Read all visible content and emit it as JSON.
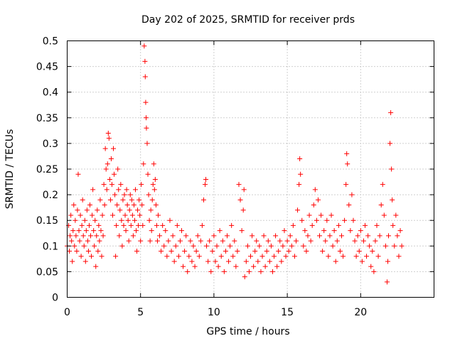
{
  "chart_data": {
    "type": "scatter",
    "title": "Day 202 of 2025, SRMTID for receiver prds",
    "xlabel": "GPS time / hours",
    "ylabel": "SRMTID / TECUs",
    "xlim": [
      0,
      25
    ],
    "ylim": [
      0,
      0.5
    ],
    "xticks": [
      0,
      5,
      10,
      15,
      20
    ],
    "xtick_labels": [
      "0",
      "5",
      "10",
      "15",
      "20"
    ],
    "yticks": [
      0,
      0.05,
      0.1,
      0.15,
      0.2,
      0.25,
      0.3,
      0.35,
      0.4,
      0.45,
      0.5
    ],
    "ytick_labels": [
      "0",
      "0.05",
      "0.1",
      "0.15",
      "0.2",
      "0.25",
      "0.3",
      "0.35",
      "0.4",
      "0.45",
      "0.5"
    ],
    "grid": true,
    "marker": "plus",
    "color": "#ff0000",
    "series": [
      {
        "name": "SRMTID",
        "points": [
          [
            0.0,
            0.1
          ],
          [
            0.1,
            0.14
          ],
          [
            0.15,
            0.09
          ],
          [
            0.2,
            0.12
          ],
          [
            0.25,
            0.16
          ],
          [
            0.3,
            0.11
          ],
          [
            0.35,
            0.07
          ],
          [
            0.4,
            0.13
          ],
          [
            0.45,
            0.18
          ],
          [
            0.5,
            0.1
          ],
          [
            0.55,
            0.15
          ],
          [
            0.6,
            0.12
          ],
          [
            0.65,
            0.09
          ],
          [
            0.7,
            0.17
          ],
          [
            0.75,
            0.24
          ],
          [
            0.8,
            0.13
          ],
          [
            0.85,
            0.11
          ],
          [
            0.9,
            0.16
          ],
          [
            0.95,
            0.08
          ],
          [
            1.0,
            0.14
          ],
          [
            1.05,
            0.19
          ],
          [
            1.1,
            0.12
          ],
          [
            1.15,
            0.1
          ],
          [
            1.2,
            0.15
          ],
          [
            1.25,
            0.07
          ],
          [
            1.3,
            0.13
          ],
          [
            1.35,
            0.17
          ],
          [
            1.4,
            0.11
          ],
          [
            1.45,
            0.09
          ],
          [
            1.5,
            0.14
          ],
          [
            1.55,
            0.18
          ],
          [
            1.6,
            0.12
          ],
          [
            1.65,
            0.08
          ],
          [
            1.7,
            0.16
          ],
          [
            1.75,
            0.21
          ],
          [
            1.8,
            0.13
          ],
          [
            1.85,
            0.1
          ],
          [
            1.9,
            0.15
          ],
          [
            1.95,
            0.06
          ],
          [
            2.0,
            0.12
          ],
          [
            2.05,
            0.17
          ],
          [
            2.1,
            0.09
          ],
          [
            2.15,
            0.14
          ],
          [
            2.2,
            0.11
          ],
          [
            2.25,
            0.19
          ],
          [
            2.3,
            0.13
          ],
          [
            2.35,
            0.08
          ],
          [
            2.4,
            0.16
          ],
          [
            2.45,
            0.12
          ],
          [
            2.5,
            0.22
          ],
          [
            2.55,
            0.18
          ],
          [
            2.6,
            0.29
          ],
          [
            2.65,
            0.25
          ],
          [
            2.7,
            0.21
          ],
          [
            2.75,
            0.26
          ],
          [
            2.8,
            0.32
          ],
          [
            2.85,
            0.31
          ],
          [
            2.9,
            0.23
          ],
          [
            2.95,
            0.19
          ],
          [
            3.0,
            0.27
          ],
          [
            3.05,
            0.22
          ],
          [
            3.1,
            0.16
          ],
          [
            3.15,
            0.29
          ],
          [
            3.2,
            0.24
          ],
          [
            3.25,
            0.2
          ],
          [
            3.3,
            0.08
          ],
          [
            3.35,
            0.14
          ],
          [
            3.4,
            0.18
          ],
          [
            3.45,
            0.25
          ],
          [
            3.5,
            0.21
          ],
          [
            3.55,
            0.12
          ],
          [
            3.6,
            0.17
          ],
          [
            3.65,
            0.22
          ],
          [
            3.7,
            0.15
          ],
          [
            3.75,
            0.1
          ],
          [
            3.8,
            0.19
          ],
          [
            3.85,
            0.14
          ],
          [
            3.9,
            0.2
          ],
          [
            3.95,
            0.16
          ],
          [
            4.0,
            0.13
          ],
          [
            4.05,
            0.21
          ],
          [
            4.1,
            0.18
          ],
          [
            4.15,
            0.15
          ],
          [
            4.2,
            0.11
          ],
          [
            4.25,
            0.17
          ],
          [
            4.3,
            0.2
          ],
          [
            4.35,
            0.14
          ],
          [
            4.4,
            0.19
          ],
          [
            4.45,
            0.16
          ],
          [
            4.5,
            0.12
          ],
          [
            4.55,
            0.18
          ],
          [
            4.6,
            0.15
          ],
          [
            4.65,
            0.21
          ],
          [
            4.7,
            0.13
          ],
          [
            4.75,
            0.09
          ],
          [
            4.8,
            0.17
          ],
          [
            4.85,
            0.14
          ],
          [
            4.9,
            0.19
          ],
          [
            4.95,
            0.16
          ],
          [
            5.0,
            0.11
          ],
          [
            5.05,
            0.22
          ],
          [
            5.1,
            0.18
          ],
          [
            5.15,
            0.14
          ],
          [
            5.2,
            0.26
          ],
          [
            5.25,
            0.49
          ],
          [
            5.3,
            0.46
          ],
          [
            5.32,
            0.43
          ],
          [
            5.35,
            0.38
          ],
          [
            5.38,
            0.35
          ],
          [
            5.4,
            0.33
          ],
          [
            5.45,
            0.3
          ],
          [
            5.5,
            0.24
          ],
          [
            5.55,
            0.2
          ],
          [
            5.6,
            0.15
          ],
          [
            5.65,
            0.11
          ],
          [
            5.7,
            0.17
          ],
          [
            5.75,
            0.13
          ],
          [
            5.8,
            0.19
          ],
          [
            5.85,
            0.22
          ],
          [
            5.9,
            0.26
          ],
          [
            5.95,
            0.21
          ],
          [
            6.0,
            0.23
          ],
          [
            6.05,
            0.18
          ],
          [
            6.1,
            0.14
          ],
          [
            6.15,
            0.11
          ],
          [
            6.2,
            0.16
          ],
          [
            6.3,
            0.12
          ],
          [
            6.4,
            0.09
          ],
          [
            6.5,
            0.14
          ],
          [
            6.6,
            0.1
          ],
          [
            6.7,
            0.13
          ],
          [
            6.8,
            0.08
          ],
          [
            6.9,
            0.11
          ],
          [
            7.0,
            0.15
          ],
          [
            7.1,
            0.09
          ],
          [
            7.2,
            0.12
          ],
          [
            7.3,
            0.07
          ],
          [
            7.4,
            0.1
          ],
          [
            7.5,
            0.14
          ],
          [
            7.6,
            0.08
          ],
          [
            7.7,
            0.11
          ],
          [
            7.8,
            0.13
          ],
          [
            7.9,
            0.06
          ],
          [
            8.0,
            0.09
          ],
          [
            8.1,
            0.12
          ],
          [
            8.2,
            0.05
          ],
          [
            8.3,
            0.08
          ],
          [
            8.4,
            0.11
          ],
          [
            8.5,
            0.07
          ],
          [
            8.6,
            0.1
          ],
          [
            8.7,
            0.06
          ],
          [
            8.8,
            0.09
          ],
          [
            8.9,
            0.12
          ],
          [
            9.0,
            0.08
          ],
          [
            9.1,
            0.11
          ],
          [
            9.2,
            0.14
          ],
          [
            9.3,
            0.19
          ],
          [
            9.4,
            0.22
          ],
          [
            9.45,
            0.23
          ],
          [
            9.5,
            0.1
          ],
          [
            9.6,
            0.07
          ],
          [
            9.7,
            0.11
          ],
          [
            9.8,
            0.05
          ],
          [
            9.9,
            0.09
          ],
          [
            10.0,
            0.12
          ],
          [
            10.1,
            0.07
          ],
          [
            10.2,
            0.1
          ],
          [
            10.3,
            0.06
          ],
          [
            10.4,
            0.13
          ],
          [
            10.5,
            0.08
          ],
          [
            10.6,
            0.11
          ],
          [
            10.7,
            0.05
          ],
          [
            10.8,
            0.09
          ],
          [
            10.9,
            0.12
          ],
          [
            11.0,
            0.07
          ],
          [
            11.1,
            0.1
          ],
          [
            11.2,
            0.14
          ],
          [
            11.3,
            0.08
          ],
          [
            11.4,
            0.11
          ],
          [
            11.5,
            0.06
          ],
          [
            11.6,
            0.09
          ],
          [
            11.7,
            0.22
          ],
          [
            11.8,
            0.19
          ],
          [
            11.9,
            0.13
          ],
          [
            12.0,
            0.17
          ],
          [
            12.05,
            0.21
          ],
          [
            12.1,
            0.04
          ],
          [
            12.2,
            0.07
          ],
          [
            12.3,
            0.1
          ],
          [
            12.4,
            0.05
          ],
          [
            12.5,
            0.08
          ],
          [
            12.6,
            0.12
          ],
          [
            12.7,
            0.06
          ],
          [
            12.8,
            0.09
          ],
          [
            12.9,
            0.11
          ],
          [
            13.0,
            0.07
          ],
          [
            13.1,
            0.1
          ],
          [
            13.2,
            0.05
          ],
          [
            13.3,
            0.08
          ],
          [
            13.4,
            0.12
          ],
          [
            13.5,
            0.06
          ],
          [
            13.6,
            0.09
          ],
          [
            13.7,
            0.11
          ],
          [
            13.8,
            0.07
          ],
          [
            13.9,
            0.1
          ],
          [
            14.0,
            0.05
          ],
          [
            14.1,
            0.08
          ],
          [
            14.2,
            0.12
          ],
          [
            14.3,
            0.06
          ],
          [
            14.4,
            0.09
          ],
          [
            14.5,
            0.11
          ],
          [
            14.6,
            0.07
          ],
          [
            14.7,
            0.1
          ],
          [
            14.8,
            0.13
          ],
          [
            14.9,
            0.08
          ],
          [
            15.0,
            0.11
          ],
          [
            15.1,
            0.09
          ],
          [
            15.2,
            0.12
          ],
          [
            15.3,
            0.1
          ],
          [
            15.4,
            0.14
          ],
          [
            15.5,
            0.08
          ],
          [
            15.6,
            0.11
          ],
          [
            15.7,
            0.17
          ],
          [
            15.8,
            0.22
          ],
          [
            15.85,
            0.27
          ],
          [
            15.9,
            0.24
          ],
          [
            16.0,
            0.15
          ],
          [
            16.1,
            0.1
          ],
          [
            16.2,
            0.13
          ],
          [
            16.3,
            0.09
          ],
          [
            16.4,
            0.12
          ],
          [
            16.5,
            0.16
          ],
          [
            16.6,
            0.11
          ],
          [
            16.7,
            0.14
          ],
          [
            16.8,
            0.18
          ],
          [
            16.9,
            0.21
          ],
          [
            17.0,
            0.15
          ],
          [
            17.1,
            0.19
          ],
          [
            17.2,
            0.12
          ],
          [
            17.3,
            0.16
          ],
          [
            17.4,
            0.09
          ],
          [
            17.5,
            0.13
          ],
          [
            17.6,
            0.11
          ],
          [
            17.7,
            0.15
          ],
          [
            17.8,
            0.08
          ],
          [
            17.9,
            0.12
          ],
          [
            18.0,
            0.16
          ],
          [
            18.1,
            0.1
          ],
          [
            18.2,
            0.13
          ],
          [
            18.3,
            0.07
          ],
          [
            18.4,
            0.11
          ],
          [
            18.5,
            0.14
          ],
          [
            18.6,
            0.09
          ],
          [
            18.7,
            0.12
          ],
          [
            18.8,
            0.08
          ],
          [
            18.9,
            0.15
          ],
          [
            19.0,
            0.22
          ],
          [
            19.05,
            0.28
          ],
          [
            19.1,
            0.26
          ],
          [
            19.2,
            0.18
          ],
          [
            19.3,
            0.13
          ],
          [
            19.4,
            0.2
          ],
          [
            19.5,
            0.15
          ],
          [
            19.6,
            0.11
          ],
          [
            19.7,
            0.08
          ],
          [
            19.8,
            0.12
          ],
          [
            19.9,
            0.09
          ],
          [
            20.0,
            0.13
          ],
          [
            20.1,
            0.07
          ],
          [
            20.2,
            0.11
          ],
          [
            20.3,
            0.14
          ],
          [
            20.4,
            0.08
          ],
          [
            20.5,
            0.12
          ],
          [
            20.6,
            0.1
          ],
          [
            20.7,
            0.06
          ],
          [
            20.8,
            0.09
          ],
          [
            20.9,
            0.05
          ],
          [
            21.0,
            0.11
          ],
          [
            21.1,
            0.14
          ],
          [
            21.2,
            0.08
          ],
          [
            21.3,
            0.12
          ],
          [
            21.4,
            0.18
          ],
          [
            21.5,
            0.22
          ],
          [
            21.6,
            0.16
          ],
          [
            21.7,
            0.1
          ],
          [
            21.8,
            0.03
          ],
          [
            21.85,
            0.07
          ],
          [
            21.9,
            0.12
          ],
          [
            22.0,
            0.3
          ],
          [
            22.05,
            0.36
          ],
          [
            22.1,
            0.25
          ],
          [
            22.15,
            0.19
          ],
          [
            22.2,
            0.14
          ],
          [
            22.3,
            0.1
          ],
          [
            22.4,
            0.16
          ],
          [
            22.5,
            0.12
          ],
          [
            22.6,
            0.08
          ],
          [
            22.7,
            0.13
          ],
          [
            22.8,
            0.1
          ]
        ]
      }
    ]
  }
}
